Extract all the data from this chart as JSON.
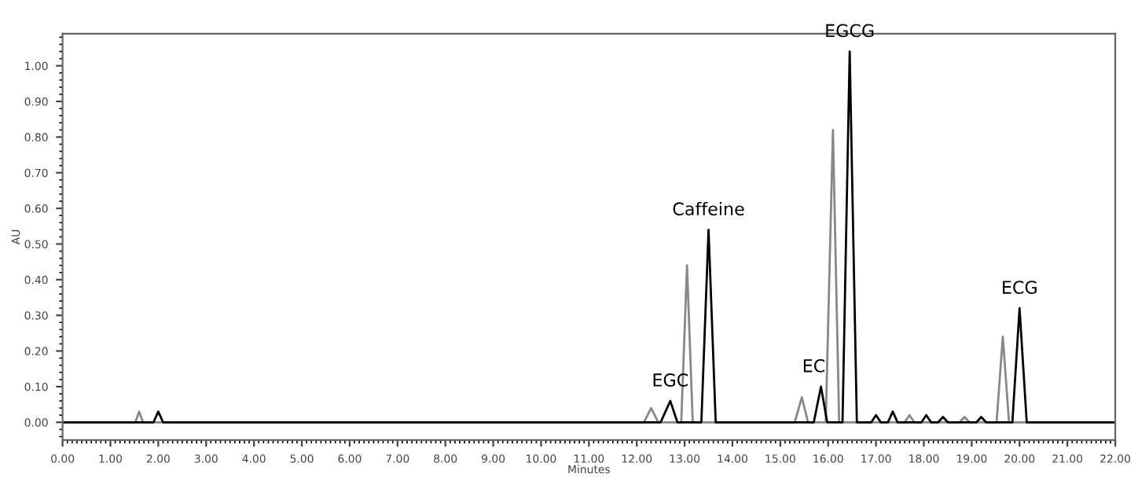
{
  "chart_data": {
    "type": "line",
    "xlabel": "Minutes",
    "ylabel": "AU",
    "series": [
      {
        "color": "#888888",
        "x": [
          0,
          1.52,
          1.6,
          1.68,
          12.15,
          12.3,
          12.45,
          12.93,
          13.05,
          13.17,
          15.3,
          15.45,
          15.58,
          15.95,
          16.1,
          16.23,
          17.6,
          17.7,
          17.8,
          18.75,
          18.85,
          18.95,
          19.52,
          19.65,
          19.78,
          22
        ],
        "values": [
          0,
          0,
          0.03,
          0,
          0,
          0.04,
          0,
          0,
          0.44,
          0,
          0,
          0.07,
          0,
          0,
          0.82,
          0,
          0,
          0.02,
          0,
          0,
          0.015,
          0,
          0,
          0.24,
          0,
          0
        ]
      },
      {
        "color": "#000000",
        "x": [
          0,
          1.9,
          2.0,
          2.1,
          12.5,
          12.7,
          12.85,
          13.35,
          13.5,
          13.65,
          15.7,
          15.85,
          15.98,
          16.3,
          16.45,
          16.6,
          16.9,
          17.0,
          17.1,
          17.25,
          17.35,
          17.45,
          17.95,
          18.05,
          18.15,
          18.3,
          18.4,
          18.5,
          19.1,
          19.2,
          19.3,
          19.85,
          20.0,
          20.15,
          22
        ],
        "values": [
          0,
          0,
          0.03,
          0,
          0,
          0.06,
          0,
          0,
          0.54,
          0,
          0,
          0.1,
          0,
          0,
          1.04,
          0,
          0,
          0.02,
          0,
          0,
          0.03,
          0,
          0,
          0.02,
          0,
          0,
          0.015,
          0,
          0,
          0.015,
          0,
          0,
          0.32,
          0,
          0
        ]
      }
    ],
    "annotations": [
      {
        "text": "EGC",
        "x": 12.7,
        "y": 0.06
      },
      {
        "text": "Caffeine",
        "x": 13.5,
        "y": 0.54
      },
      {
        "text": "EC",
        "x": 15.7,
        "y": 0.1
      },
      {
        "text": "EGCG",
        "x": 16.45,
        "y": 1.04
      },
      {
        "text": "ECG",
        "x": 20.0,
        "y": 0.32
      }
    ],
    "xlim": [
      0,
      22
    ],
    "xticks": [
      {
        "value": 0,
        "label": "0.00"
      },
      {
        "value": 1,
        "label": "1.00"
      },
      {
        "value": 2,
        "label": "2.00"
      },
      {
        "value": 3,
        "label": "3.00"
      },
      {
        "value": 4,
        "label": "4.00"
      },
      {
        "value": 5,
        "label": "5.00"
      },
      {
        "value": 6,
        "label": "6.00"
      },
      {
        "value": 7,
        "label": "7.00"
      },
      {
        "value": 8,
        "label": "8.00"
      },
      {
        "value": 9,
        "label": "9.00"
      },
      {
        "value": 10,
        "label": "10.00"
      },
      {
        "value": 11,
        "label": "11.00"
      },
      {
        "value": 12,
        "label": "12.00"
      },
      {
        "value": 13,
        "label": "13.00"
      },
      {
        "value": 14,
        "label": "14.00"
      },
      {
        "value": 15,
        "label": "15.00"
      },
      {
        "value": 16,
        "label": "16.00"
      },
      {
        "value": 17,
        "label": "17.00"
      },
      {
        "value": 18,
        "label": "18.00"
      },
      {
        "value": 19,
        "label": "19.00"
      },
      {
        "value": 20,
        "label": "20.00"
      },
      {
        "value": 21,
        "label": "21.00"
      },
      {
        "value": 22,
        "label": "22.00"
      }
    ],
    "ylim": [
      -0.05,
      1.09
    ],
    "yticks": [
      {
        "value": 0,
        "label": "0.00"
      },
      {
        "value": 0.1,
        "label": "0.10"
      },
      {
        "value": 0.2,
        "label": "0.20"
      },
      {
        "value": 0.3,
        "label": "0.30"
      },
      {
        "value": 0.4,
        "label": "0.40"
      },
      {
        "value": 0.5,
        "label": "0.50"
      },
      {
        "value": 0.6,
        "label": "0.60"
      },
      {
        "value": 0.7,
        "label": "0.70"
      },
      {
        "value": 0.8,
        "label": "0.80"
      },
      {
        "value": 0.9,
        "label": "0.90"
      },
      {
        "value": 1.0,
        "label": "1.00"
      }
    ],
    "grid": false,
    "legend": false
  }
}
